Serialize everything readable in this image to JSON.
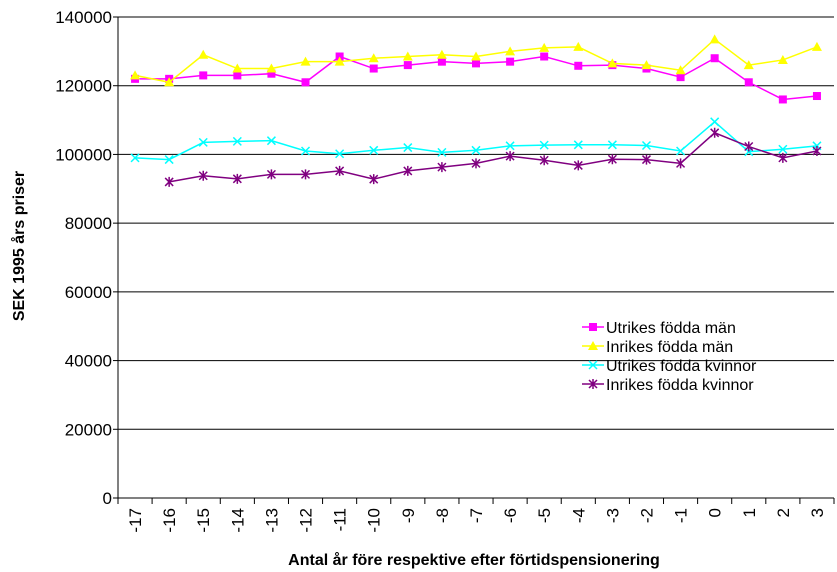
{
  "chart_data": {
    "type": "line",
    "xlabel": "Antal år före respektive efter förtidspensionering",
    "ylabel": "SEK 1995 års priser",
    "x": [
      -17,
      -16,
      -15,
      -14,
      -13,
      -12,
      -11,
      -10,
      -9,
      -8,
      -7,
      -6,
      -5,
      -4,
      -3,
      -2,
      -1,
      0,
      1,
      2,
      3
    ],
    "ylim": [
      0,
      140000
    ],
    "yticks": [
      0,
      20000,
      40000,
      60000,
      80000,
      100000,
      120000,
      140000
    ],
    "grid": "horizontal",
    "legend_position": "right-middle",
    "series": [
      {
        "name": "Utrikes födda män",
        "color": "#ff00ff",
        "marker": "square",
        "values": [
          122000,
          122000,
          123000,
          123000,
          123500,
          121000,
          128500,
          125000,
          126000,
          127000,
          126500,
          127000,
          128500,
          125800,
          126000,
          125000,
          122500,
          128000,
          121000,
          116000,
          117000
        ]
      },
      {
        "name": "Inrikes födda män",
        "color": "#ffff00",
        "marker": "triangle",
        "values": [
          123000,
          121000,
          129000,
          125000,
          125000,
          127000,
          127000,
          128000,
          128500,
          129000,
          128500,
          130000,
          131000,
          131300,
          126500,
          126000,
          124500,
          133500,
          126000,
          127500,
          131300
        ]
      },
      {
        "name": "Utrikes födda kvinnor",
        "color": "#00ffff",
        "marker": "x",
        "values": [
          99000,
          98500,
          103500,
          103800,
          104000,
          101000,
          100200,
          101200,
          102000,
          100600,
          101200,
          102500,
          102700,
          102800,
          102800,
          102600,
          101000,
          109500,
          100800,
          101500,
          102500
        ]
      },
      {
        "name": "Inrikes födda kvinnor",
        "color": "#800080",
        "marker": "star",
        "values": [
          null,
          92000,
          93800,
          92900,
          94200,
          94200,
          95200,
          92800,
          95200,
          96300,
          97400,
          99500,
          98300,
          96800,
          98600,
          98500,
          97400,
          106300,
          102300,
          99000,
          101000
        ]
      }
    ]
  }
}
